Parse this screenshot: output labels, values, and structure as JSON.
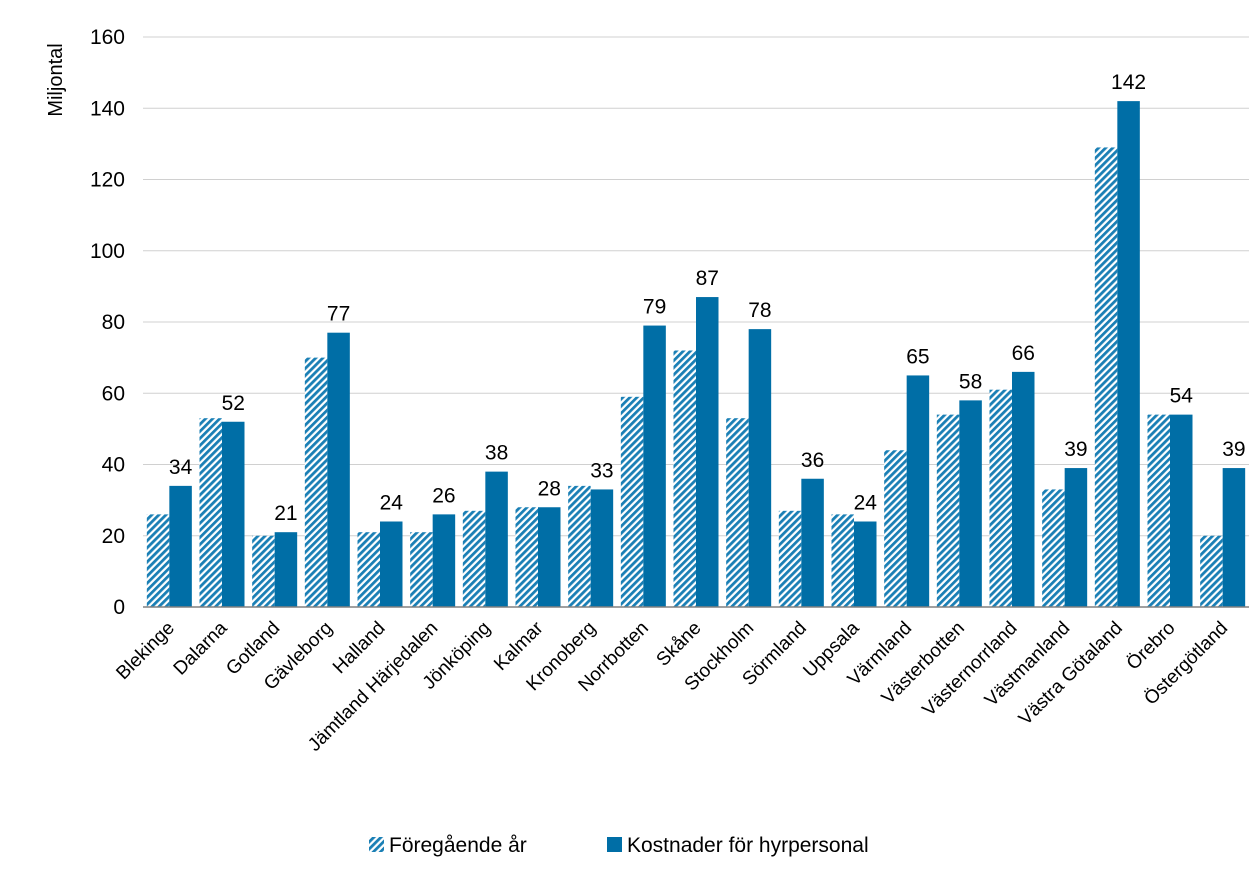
{
  "chart_data": {
    "type": "bar",
    "title": "",
    "xlabel": "",
    "ylabel": "Miljontal",
    "ylim": [
      0,
      160
    ],
    "yticks": [
      0,
      20,
      40,
      60,
      80,
      100,
      120,
      140,
      160
    ],
    "grid": true,
    "legend_position": "bottom",
    "categories": [
      "Blekinge",
      "Dalarna",
      "Gotland",
      "Gävleborg",
      "Halland",
      "Jämtland Härjedalen",
      "Jönköping",
      "Kalmar",
      "Kronoberg",
      "Norrbotten",
      "Skåne",
      "Stockholm",
      "Sörmland",
      "Uppsala",
      "Värmland",
      "Västerbotten",
      "Västernorrland",
      "Västmanland",
      "Västra Götaland",
      "Örebro",
      "Östergötland"
    ],
    "series": [
      {
        "name": "Föregående år",
        "color": "#1a7fb5",
        "pattern": "hatched",
        "values": [
          26,
          53,
          20,
          70,
          21,
          21,
          27,
          28,
          34,
          59,
          72,
          53,
          27,
          26,
          44,
          54,
          61,
          33,
          129,
          54,
          20
        ]
      },
      {
        "name": "Kostnader för hyrpersonal",
        "color": "#006ea6",
        "pattern": "solid",
        "values": [
          34,
          52,
          21,
          77,
          24,
          26,
          38,
          28,
          33,
          79,
          87,
          78,
          36,
          24,
          65,
          58,
          66,
          39,
          142,
          54,
          39
        ],
        "data_labels": [
          "34",
          "52",
          "21",
          "77",
          "24",
          "26",
          "38",
          "28",
          "33",
          "79",
          "87",
          "78",
          "36",
          "24",
          "65",
          "58",
          "66",
          "39",
          "142",
          "54",
          "39"
        ]
      }
    ]
  },
  "colors": {
    "grid": "#d0d0d0",
    "axis": "#808080",
    "text": "#000000"
  }
}
